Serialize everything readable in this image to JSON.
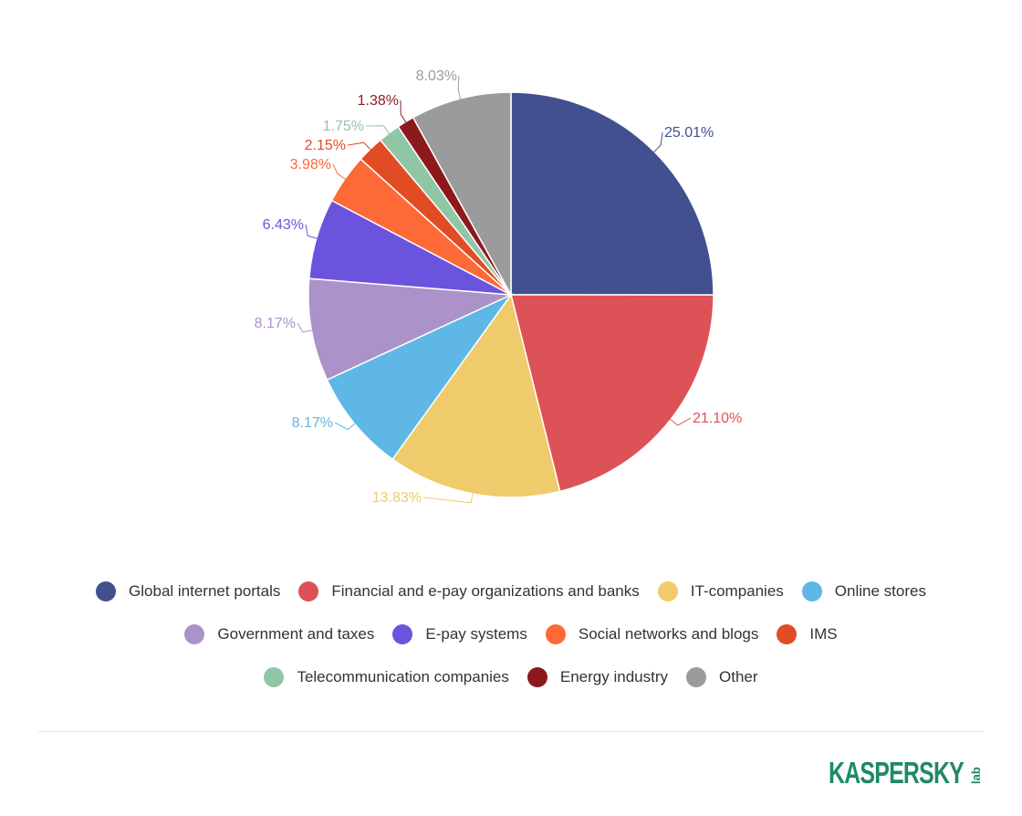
{
  "chart_data": {
    "type": "pie",
    "title": "",
    "slices": [
      {
        "name": "Global internet portals",
        "value": 25.01,
        "label": "25.01%",
        "color": "#42508f"
      },
      {
        "name": "Financial and e-pay organizations and banks",
        "value": 21.1,
        "label": "21.10%",
        "color": "#dd5257"
      },
      {
        "name": "IT-companies",
        "value": 13.83,
        "label": "13.83%",
        "color": "#efcb6b"
      },
      {
        "name": "Online stores",
        "value": 8.17,
        "label": "8.17%",
        "color": "#5eb7e5"
      },
      {
        "name": "Government and taxes",
        "value": 8.17,
        "label": "8.17%",
        "color": "#ab92c8"
      },
      {
        "name": "E-pay systems",
        "value": 6.43,
        "label": "6.43%",
        "color": "#6c53dd"
      },
      {
        "name": "Social networks and blogs",
        "value": 3.98,
        "label": "3.98%",
        "color": "#fd6937"
      },
      {
        "name": "IMS",
        "value": 2.15,
        "label": "2.15%",
        "color": "#e14c24"
      },
      {
        "name": "Telecommunication companies",
        "value": 1.75,
        "label": "1.75%",
        "color": "#90c6a5"
      },
      {
        "name": "Energy industry",
        "value": 1.38,
        "label": "1.38%",
        "color": "#8c1a1c"
      },
      {
        "name": "Other",
        "value": 8.03,
        "label": "8.03%",
        "color": "#9b9b9b"
      }
    ],
    "legend_position": "bottom"
  },
  "brand": {
    "name": "KASPERSKY",
    "suffix": "lab",
    "color": "#1f8a64"
  }
}
